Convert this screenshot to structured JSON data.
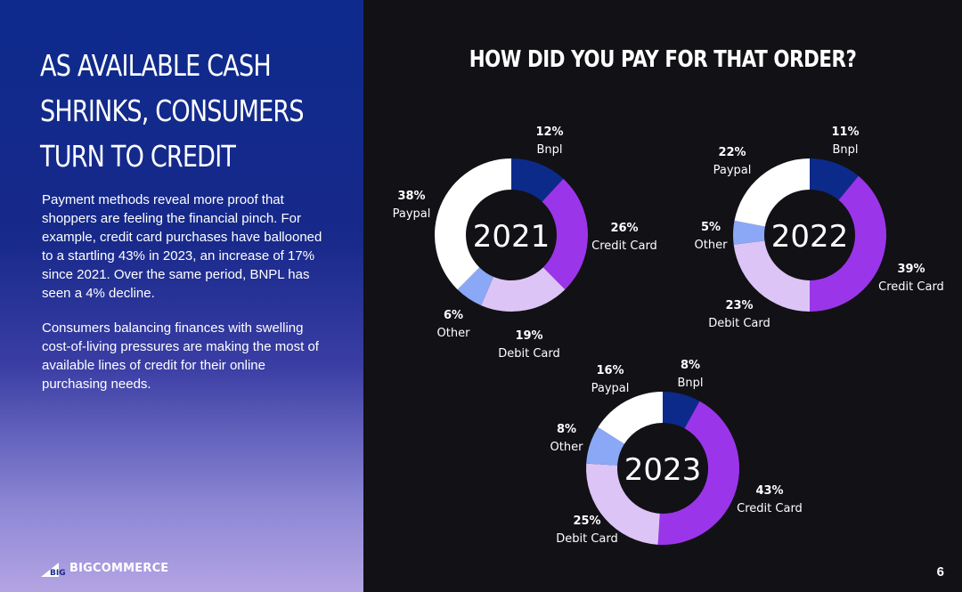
{
  "headline": "AS AVAILABLE CASH SHRINKS, CONSUMERS TURN TO CREDIT",
  "paragraphs": [
    "Payment methods reveal more proof that shoppers are feeling the financial pinch. For example, credit card purchases have ballooned to a startling 43% in 2023, an increase of 17% since 2021. Over the same period, BNPL has seen a 4% decline.",
    "Consumers balancing finances with swelling cost-of-living pressures are making the most of available lines of credit for their online purchasing needs."
  ],
  "logo": {
    "text": "BIGCOMMERCE"
  },
  "page_number": "6",
  "colors": {
    "Bnpl": "#0c2a8a",
    "Credit Card": "#9b35ea",
    "Debit Card": "#dcc4f6",
    "Other": "#8aa8f6",
    "Paypal": "#ffffff"
  },
  "chart_data": [
    {
      "type": "pie",
      "style": "donut",
      "title": "HOW DID YOU PAY FOR THAT ORDER?",
      "center_label": "2021",
      "slices": [
        {
          "label": "Bnpl",
          "value": 12,
          "display": "12%"
        },
        {
          "label": "Credit Card",
          "value": 26,
          "display": "26%"
        },
        {
          "label": "Debit Card",
          "value": 19,
          "display": "19%"
        },
        {
          "label": "Other",
          "value": 6,
          "display": "6%"
        },
        {
          "label": "Paypal",
          "value": 38,
          "display": "38%"
        }
      ]
    },
    {
      "type": "pie",
      "style": "donut",
      "center_label": "2022",
      "slices": [
        {
          "label": "Bnpl",
          "value": 11,
          "display": "11%"
        },
        {
          "label": "Credit Card",
          "value": 39,
          "display": "39%"
        },
        {
          "label": "Debit Card",
          "value": 23,
          "display": "23%"
        },
        {
          "label": "Other",
          "value": 5,
          "display": "5%"
        },
        {
          "label": "Paypal",
          "value": 22,
          "display": "22%"
        }
      ]
    },
    {
      "type": "pie",
      "style": "donut",
      "center_label": "2023",
      "slices": [
        {
          "label": "Bnpl",
          "value": 8,
          "display": "8%"
        },
        {
          "label": "Credit Card",
          "value": 43,
          "display": "43%"
        },
        {
          "label": "Debit Card",
          "value": 25,
          "display": "25%"
        },
        {
          "label": "Other",
          "value": 8,
          "display": "8%"
        },
        {
          "label": "Paypal",
          "value": 16,
          "display": "16%"
        }
      ]
    }
  ]
}
